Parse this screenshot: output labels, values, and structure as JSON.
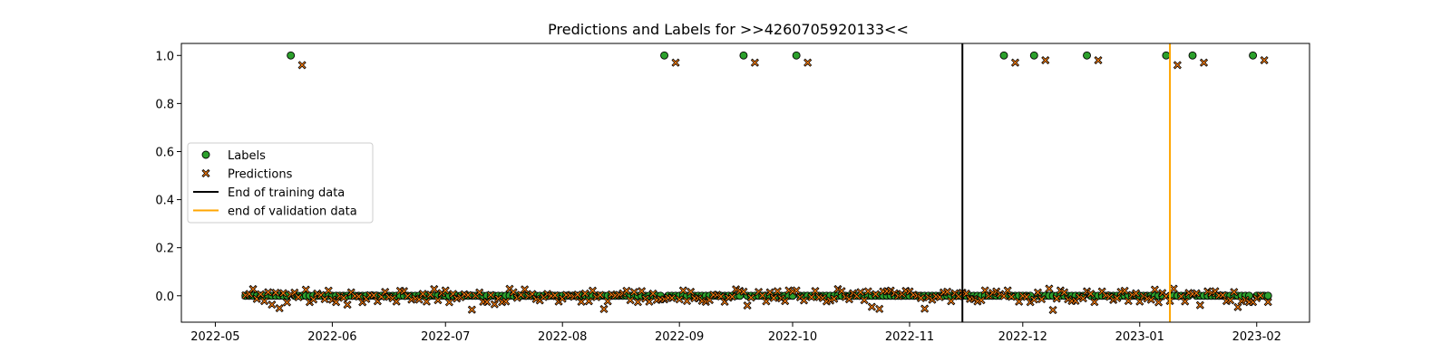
{
  "chart_data": {
    "type": "scatter",
    "title": "Predictions and Labels for >>4260705920133<<",
    "xlabel": "",
    "ylabel": "",
    "xlim": [
      "2022-04-22",
      "2023-02-15"
    ],
    "ylim": [
      -0.11,
      1.05
    ],
    "x_ticks": [
      "2022-05",
      "2022-06",
      "2022-07",
      "2022-08",
      "2022-09",
      "2022-10",
      "2022-11",
      "2022-12",
      "2023-01",
      "2023-02"
    ],
    "y_ticks": [
      "0.0",
      "0.2",
      "0.4",
      "0.6",
      "0.8",
      "1.0"
    ],
    "grid": false,
    "legend_position": "center-left",
    "series": [
      {
        "name": "Labels",
        "marker": "circle",
        "color": "#2ca02c",
        "edge_color": "#000000",
        "points_one": [
          "2022-05-21",
          "2022-08-28",
          "2022-09-18",
          "2022-10-02",
          "2022-11-26",
          "2022-12-04",
          "2022-12-18",
          "2023-01-08",
          "2023-01-15",
          "2023-01-31"
        ],
        "zero_range": [
          "2022-05-09",
          "2023-02-04"
        ]
      },
      {
        "name": "Predictions",
        "marker": "x-filled",
        "color": "#ff7f0e",
        "edge_color": "#000000",
        "high_points": [
          {
            "x": "2022-05-24",
            "y": 0.96
          },
          {
            "x": "2022-08-31",
            "y": 0.97
          },
          {
            "x": "2022-09-21",
            "y": 0.97
          },
          {
            "x": "2022-10-05",
            "y": 0.97
          },
          {
            "x": "2022-11-29",
            "y": 0.97
          },
          {
            "x": "2022-12-07",
            "y": 0.98
          },
          {
            "x": "2022-12-21",
            "y": 0.98
          },
          {
            "x": "2023-01-11",
            "y": 0.96
          },
          {
            "x": "2023-01-18",
            "y": 0.97
          },
          {
            "x": "2023-02-03",
            "y": 0.98
          }
        ],
        "noise_range": [
          -0.06,
          0.03
        ]
      }
    ],
    "vlines": [
      {
        "name": "End of training data",
        "x": "2022-11-15",
        "color": "#000000"
      },
      {
        "name": "end of validation data",
        "x": "2023-01-09",
        "color": "#ffa500"
      }
    ]
  }
}
